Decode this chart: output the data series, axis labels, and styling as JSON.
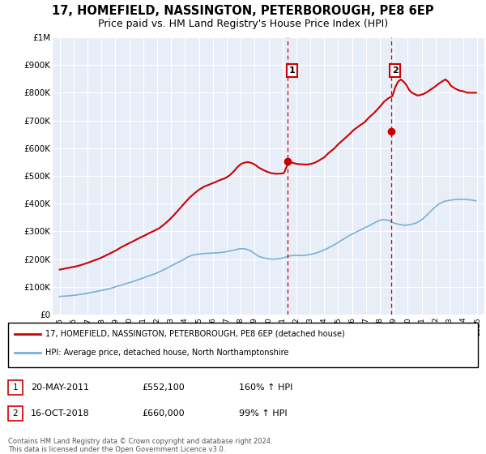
{
  "title": "17, HOMEFIELD, NASSINGTON, PETERBOROUGH, PE8 6EP",
  "subtitle": "Price paid vs. HM Land Registry's House Price Index (HPI)",
  "title_fontsize": 10.5,
  "subtitle_fontsize": 9,
  "xlim": [
    1994.5,
    2025.5
  ],
  "ylim": [
    0,
    1000000
  ],
  "yticks": [
    0,
    100000,
    200000,
    300000,
    400000,
    500000,
    600000,
    700000,
    800000,
    900000,
    1000000
  ],
  "ytick_labels": [
    "£0",
    "£100K",
    "£200K",
    "£300K",
    "£400K",
    "£500K",
    "£600K",
    "£700K",
    "£800K",
    "£900K",
    "£1M"
  ],
  "xticks": [
    1995,
    1996,
    1997,
    1998,
    1999,
    2000,
    2001,
    2002,
    2003,
    2004,
    2005,
    2006,
    2007,
    2008,
    2009,
    2010,
    2011,
    2012,
    2013,
    2014,
    2015,
    2016,
    2017,
    2018,
    2019,
    2020,
    2021,
    2022,
    2023,
    2024,
    2025
  ],
  "bg_color": "#e8eef8",
  "grid_color": "#ffffff",
  "red_line_color": "#cc0000",
  "blue_line_color": "#7bafd4",
  "sale1_x": 2011.38,
  "sale1_y": 552100,
  "sale2_x": 2018.79,
  "sale2_y": 660000,
  "vline_color": "#cc0000",
  "dot_color": "#cc0000",
  "legend_line1": "17, HOMEFIELD, NASSINGTON, PETERBOROUGH, PE8 6EP (detached house)",
  "legend_line2": "HPI: Average price, detached house, North Northamptonshire",
  "table_row1": [
    "1",
    "20-MAY-2011",
    "£552,100",
    "160% ↑ HPI"
  ],
  "table_row2": [
    "2",
    "16-OCT-2018",
    "£660,000",
    "99% ↑ HPI"
  ],
  "footer": "Contains HM Land Registry data © Crown copyright and database right 2024.\nThis data is licensed under the Open Government Licence v3.0.",
  "red_x": [
    1995.0,
    1995.1,
    1995.2,
    1995.4,
    1995.6,
    1995.9,
    1996.2,
    1996.5,
    1996.8,
    1997.1,
    1997.4,
    1997.8,
    1998.2,
    1998.6,
    1999.0,
    1999.4,
    1999.9,
    2000.3,
    2000.8,
    2001.1,
    2001.4,
    2001.7,
    2001.9,
    2002.2,
    2002.5,
    2002.8,
    2003.1,
    2003.5,
    2003.9,
    2004.3,
    2004.7,
    2005.0,
    2005.4,
    2005.8,
    2006.2,
    2006.5,
    2006.9,
    2007.2,
    2007.5,
    2007.7,
    2007.9,
    2008.1,
    2008.3,
    2008.5,
    2008.7,
    2008.9,
    2009.1,
    2009.3,
    2009.6,
    2009.9,
    2010.2,
    2010.5,
    2010.8,
    2011.1,
    2011.4,
    2011.7,
    2011.9,
    2012.1,
    2012.4,
    2012.7,
    2013.0,
    2013.3,
    2013.6,
    2014.0,
    2014.3,
    2014.7,
    2015.0,
    2015.4,
    2015.8,
    2016.1,
    2016.5,
    2016.9,
    2017.2,
    2017.6,
    2018.0,
    2018.3,
    2018.6,
    2018.9,
    2019.1,
    2019.3,
    2019.5,
    2019.7,
    2019.9,
    2020.1,
    2020.3,
    2020.5,
    2020.7,
    2020.9,
    2021.1,
    2021.3,
    2021.6,
    2021.9,
    2022.2,
    2022.5,
    2022.7,
    2022.9,
    2023.1,
    2023.4,
    2023.7,
    2024.0,
    2024.3,
    2024.6,
    2024.9
  ],
  "red_y": [
    162000,
    163000,
    164000,
    166000,
    168000,
    171000,
    174000,
    178000,
    183000,
    188000,
    194000,
    201000,
    210000,
    220000,
    230000,
    242000,
    255000,
    265000,
    278000,
    285000,
    293000,
    300000,
    305000,
    313000,
    325000,
    338000,
    353000,
    375000,
    398000,
    420000,
    438000,
    450000,
    462000,
    470000,
    478000,
    485000,
    492000,
    502000,
    516000,
    528000,
    538000,
    545000,
    548000,
    550000,
    548000,
    544000,
    538000,
    530000,
    522000,
    515000,
    510000,
    508000,
    508000,
    510000,
    545000,
    548000,
    545000,
    543000,
    542000,
    541000,
    543000,
    547000,
    555000,
    567000,
    582000,
    598000,
    614000,
    632000,
    650000,
    665000,
    680000,
    694000,
    710000,
    728000,
    750000,
    768000,
    780000,
    788000,
    820000,
    840000,
    848000,
    840000,
    828000,
    810000,
    800000,
    795000,
    790000,
    792000,
    795000,
    800000,
    810000,
    820000,
    832000,
    842000,
    848000,
    840000,
    825000,
    815000,
    808000,
    805000,
    800000,
    800000,
    800000
  ],
  "blue_x": [
    1995.0,
    1995.2,
    1995.5,
    1995.8,
    1996.1,
    1996.4,
    1996.8,
    1997.1,
    1997.5,
    1997.9,
    1998.3,
    1998.7,
    1999.0,
    1999.4,
    1999.8,
    2000.2,
    2000.6,
    2001.0,
    2001.3,
    2001.6,
    2001.9,
    2002.2,
    2002.5,
    2002.8,
    2003.1,
    2003.5,
    2003.9,
    2004.2,
    2004.6,
    2005.0,
    2005.3,
    2005.7,
    2006.0,
    2006.4,
    2006.8,
    2007.1,
    2007.5,
    2007.8,
    2008.1,
    2008.4,
    2008.7,
    2009.0,
    2009.3,
    2009.6,
    2009.9,
    2010.2,
    2010.5,
    2010.8,
    2011.1,
    2011.4,
    2011.7,
    2012.0,
    2012.3,
    2012.5,
    2012.8,
    2013.1,
    2013.5,
    2013.8,
    2014.2,
    2014.6,
    2015.0,
    2015.4,
    2015.8,
    2016.2,
    2016.6,
    2017.0,
    2017.4,
    2017.8,
    2018.2,
    2018.6,
    2019.0,
    2019.4,
    2019.8,
    2020.2,
    2020.6,
    2021.0,
    2021.4,
    2021.8,
    2022.2,
    2022.6,
    2023.0,
    2023.4,
    2023.8,
    2024.2,
    2024.6,
    2024.9
  ],
  "blue_y": [
    65000,
    66000,
    67000,
    68000,
    70000,
    72000,
    75000,
    78000,
    82000,
    86000,
    90000,
    95000,
    100000,
    106000,
    112000,
    118000,
    125000,
    132000,
    138000,
    143000,
    148000,
    155000,
    162000,
    170000,
    178000,
    188000,
    198000,
    208000,
    215000,
    218000,
    220000,
    221000,
    222000,
    223000,
    225000,
    228000,
    232000,
    236000,
    238000,
    236000,
    230000,
    220000,
    210000,
    205000,
    202000,
    200000,
    200000,
    202000,
    205000,
    210000,
    213000,
    214000,
    213000,
    213000,
    215000,
    218000,
    223000,
    229000,
    238000,
    248000,
    260000,
    273000,
    285000,
    295000,
    305000,
    315000,
    325000,
    336000,
    343000,
    340000,
    330000,
    325000,
    322000,
    325000,
    330000,
    342000,
    360000,
    380000,
    398000,
    408000,
    412000,
    415000,
    416000,
    415000,
    413000,
    410000
  ]
}
